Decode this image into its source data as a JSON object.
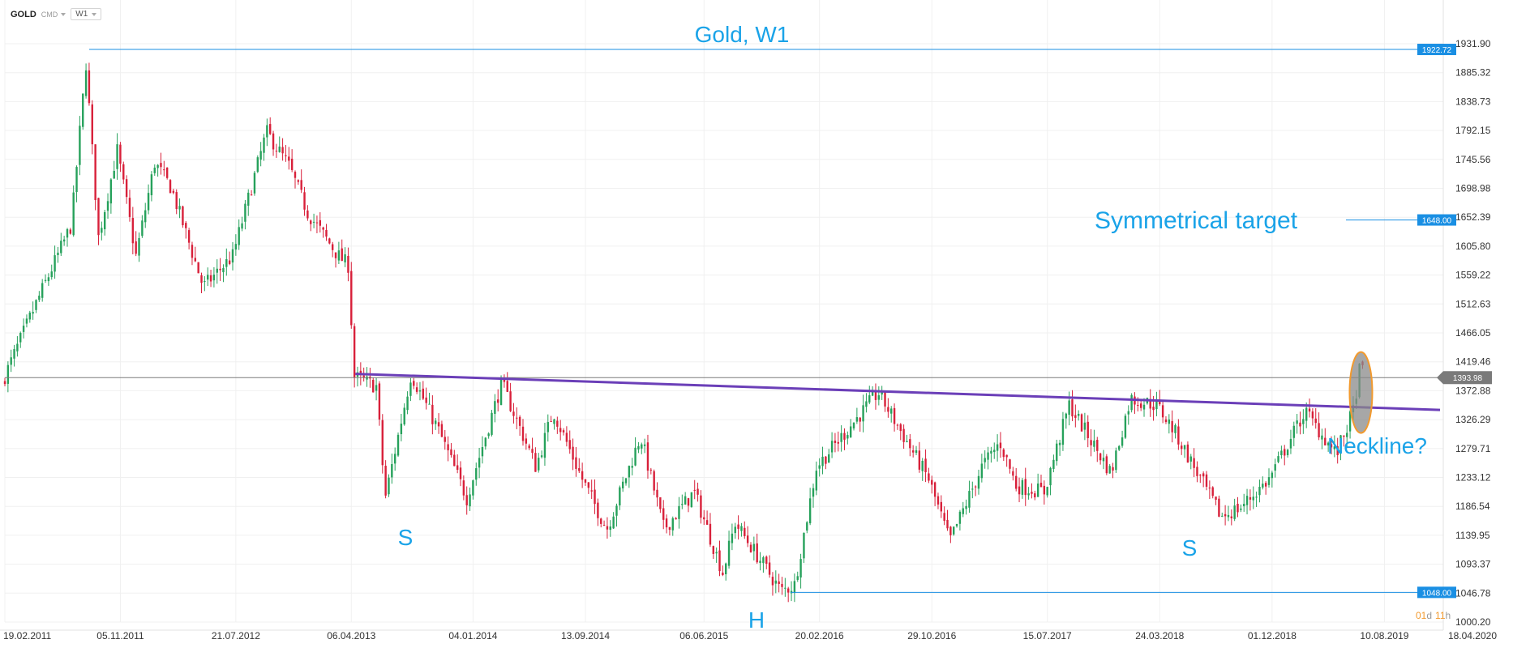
{
  "header": {
    "symbol": "GOLD",
    "market": "CMD",
    "timeframe": "W1"
  },
  "chart_data": {
    "type": "candlestick",
    "title": "Gold, W1",
    "y_ticks": [
      "1931.90",
      "1885.32",
      "1838.73",
      "1792.15",
      "1745.56",
      "1698.98",
      "1652.39",
      "1605.80",
      "1559.22",
      "1512.63",
      "1466.05",
      "1419.46",
      "1372.88",
      "1326.29",
      "1279.71",
      "1233.12",
      "1186.54",
      "1139.95",
      "1093.37",
      "1046.78",
      "1000.20"
    ],
    "ylim": [
      1000.2,
      1931.9
    ],
    "x_ticks": [
      "19.02.2011",
      "05.11.2011",
      "21.07.2012",
      "06.04.2013",
      "04.01.2014",
      "13.09.2014",
      "06.06.2015",
      "20.02.2016",
      "29.10.2016",
      "15.07.2017",
      "24.03.2018",
      "01.12.2018",
      "10.08.2019",
      "18.04.2020"
    ],
    "price_path": [
      [
        "19.02.2011",
        1385
      ],
      [
        "05.05.2011",
        1510
      ],
      [
        "25.07.2011",
        1640
      ],
      [
        "27.08.2011",
        1900
      ],
      [
        "24.09.2011",
        1620
      ],
      [
        "05.11.2011",
        1760
      ],
      [
        "17.12.2011",
        1590
      ],
      [
        "28.01.2012",
        1740
      ],
      [
        "05.03.2012",
        1700
      ],
      [
        "16.05.2012",
        1540
      ],
      [
        "21.07.2012",
        1590
      ],
      [
        "05.10.2012",
        1790
      ],
      [
        "24.11.2012",
        1735
      ],
      [
        "05.01.2013",
        1660
      ],
      [
        "15.03.2013",
        1590
      ],
      [
        "06.04.2013",
        1575
      ],
      [
        "20.04.2013",
        1395
      ],
      [
        "08.06.2013",
        1380
      ],
      [
        "28.06.2013",
        1200
      ],
      [
        "25.08.2013",
        1400
      ],
      [
        "25.10.2013",
        1310
      ],
      [
        "28.12.2013",
        1200
      ],
      [
        "16.03.2014",
        1385
      ],
      [
        "01.06.2014",
        1250
      ],
      [
        "10.07.2014",
        1340
      ],
      [
        "13.09.2014",
        1230
      ],
      [
        "07.11.2014",
        1150
      ],
      [
        "22.01.2015",
        1300
      ],
      [
        "15.03.2015",
        1150
      ],
      [
        "22.05.2015",
        1210
      ],
      [
        "25.07.2015",
        1080
      ],
      [
        "22.08.2015",
        1160
      ],
      [
        "03.12.2015",
        1050
      ],
      [
        "02.01.2016",
        1060
      ],
      [
        "20.02.2016",
        1250
      ],
      [
        "08.07.2016",
        1370
      ],
      [
        "29.10.2016",
        1230
      ],
      [
        "15.12.2016",
        1130
      ],
      [
        "25.02.2017",
        1250
      ],
      [
        "07.04.2017",
        1290
      ],
      [
        "13.05.2017",
        1220
      ],
      [
        "15.07.2017",
        1210
      ],
      [
        "09.09.2017",
        1350
      ],
      [
        "12.12.2017",
        1240
      ],
      [
        "24.01.2018",
        1360
      ],
      [
        "24.03.2018",
        1350
      ],
      [
        "01.05.2018",
        1310
      ],
      [
        "16.08.2018",
        1170
      ],
      [
        "28.09.2018",
        1185
      ],
      [
        "01.12.2018",
        1230
      ],
      [
        "20.02.2019",
        1340
      ],
      [
        "01.05.2019",
        1270
      ],
      [
        "08.06.2019",
        1340
      ],
      [
        "22.06.2019",
        1405
      ]
    ],
    "levels": [
      {
        "label": "1922.72",
        "value": 1922.72
      },
      {
        "label": "1648.00",
        "value": 1648.0
      },
      {
        "label": "1048.00",
        "value": 1048.0
      }
    ],
    "current_price": {
      "label": "1393.98",
      "value": 1393.98
    },
    "neckline": {
      "start": [
        "06.04.2013",
        1400
      ],
      "end": [
        "18.04.2020",
        1342
      ]
    },
    "annotations": {
      "target": "Symmetrical target",
      "neckline": "Neckline?",
      "shoulder_left": "S",
      "head": "H",
      "shoulder_right": "S"
    },
    "countdown": {
      "days": "01",
      "d": "d",
      "hours": "11",
      "h": "h"
    },
    "colors": {
      "up": "#26a15b",
      "down": "#d8203a",
      "level": "#1a8fe3",
      "tag": "#1a8fe3",
      "neckline": "#6b3fb8",
      "annotation": "#1aa3e8",
      "current": "#7a7a7a",
      "ellipse_fill": "#8a8a8a",
      "ellipse_stroke": "#f29a2e",
      "countdown": "#f29a2e"
    }
  }
}
